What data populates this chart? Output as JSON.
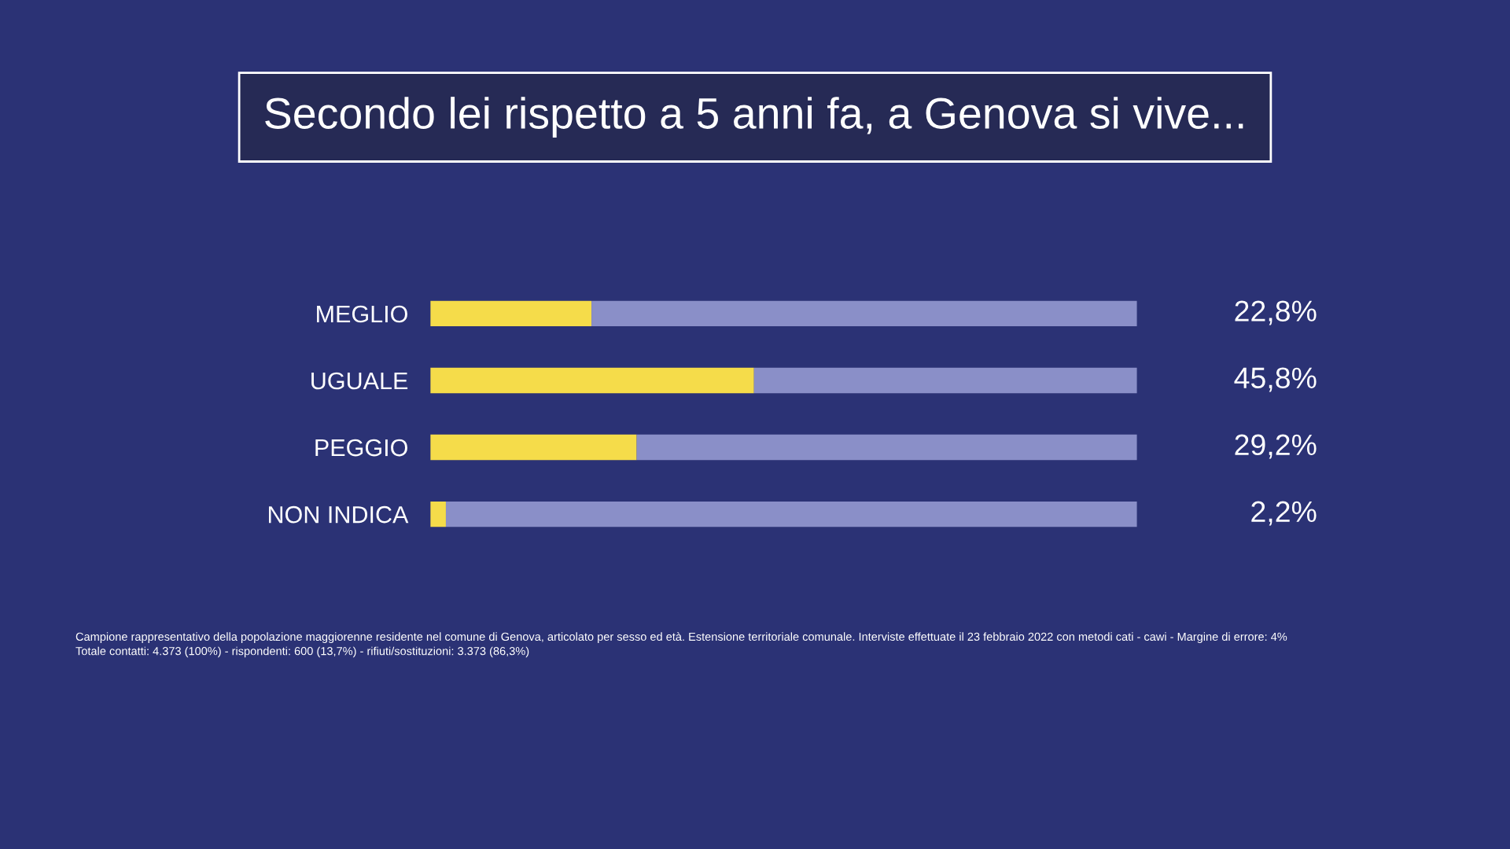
{
  "chart_data": {
    "type": "bar",
    "orientation": "horizontal",
    "stacked": true,
    "title": "Secondo lei rispetto a 5 anni fa, a Genova si vive...",
    "categories": [
      "MEGLIO",
      "UGUALE",
      "PEGGIO",
      "NON INDICA"
    ],
    "series": [
      {
        "color": "#f5dc4a",
        "values": [
          22.8,
          45.8,
          29.2,
          2.2
        ],
        "value_labels": [
          "22,8%",
          "45,8%",
          "29,2%",
          "2,2%"
        ]
      },
      {
        "color": "#8a8fc8",
        "values": [
          77.2,
          54.2,
          70.8,
          97.8
        ]
      }
    ],
    "xlim": [
      0,
      100
    ],
    "tick_labels": "y",
    "grid": false,
    "legend": false,
    "annotations": [
      "Campione rappresentativo della popolazione maggiorenne residente nel comune di Genova, articolato per sesso ed età. Estensione territoriale comunale. Interviste effettuate il 23 febbraio 2022 con metodi cati - cawi - Margine di errore: 4%",
      "Totale contatti: 4.373 (100%) - rispondenti: 600 (13,7%) - rifiuti/sostituzioni: 3.373 (86,3%)"
    ]
  }
}
